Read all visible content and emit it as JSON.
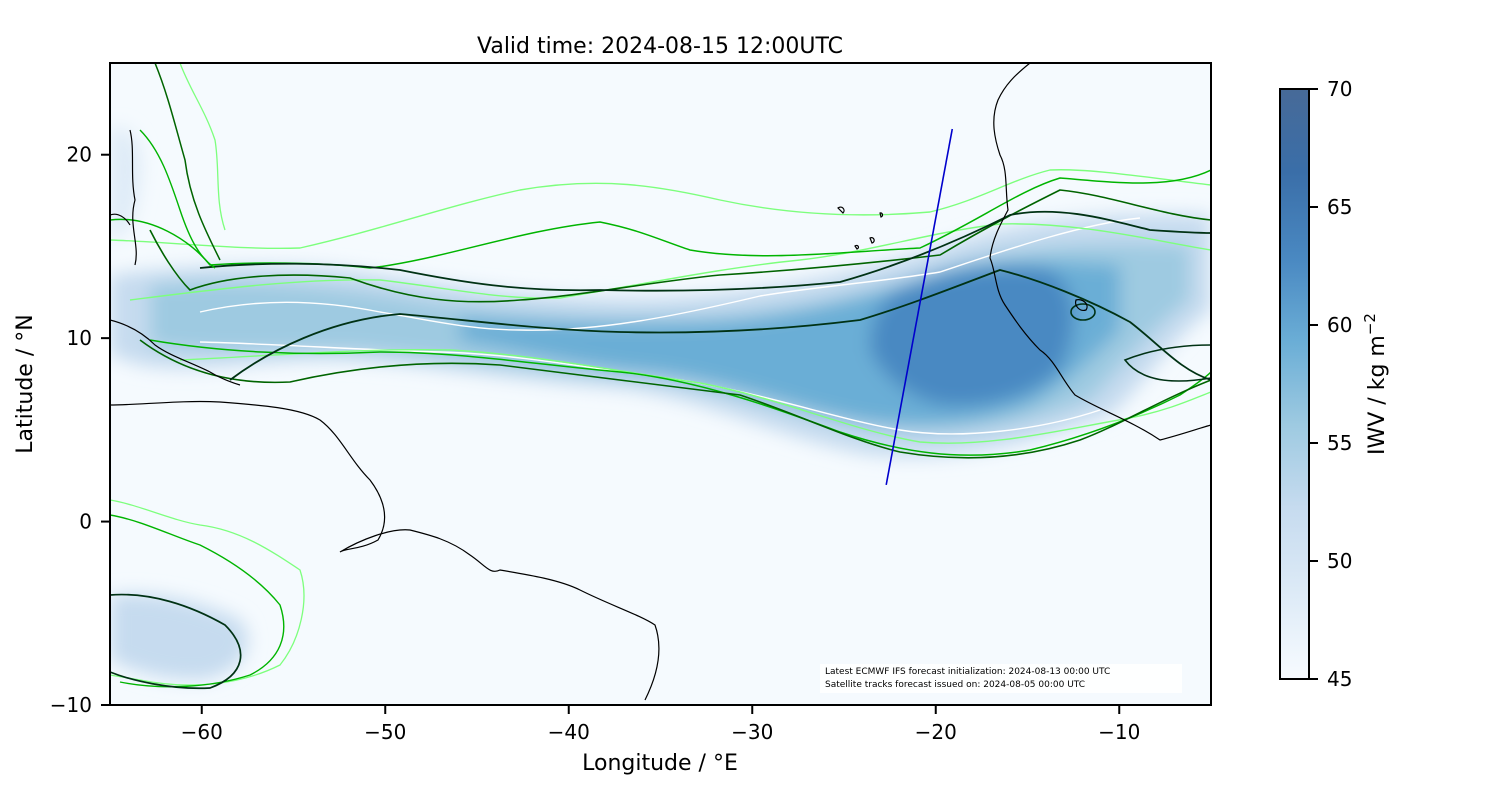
{
  "title": "Valid time: 2024-08-15 12:00UTC",
  "map": {
    "xlabel": "Longitude / °E",
    "ylabel": "Latitude / °N",
    "xlim": [
      -65,
      -5
    ],
    "ylim": [
      -10,
      25
    ],
    "xticks": [
      {
        "value": -60,
        "label": "−60"
      },
      {
        "value": -50,
        "label": "−50"
      },
      {
        "value": -40,
        "label": "−40"
      },
      {
        "value": -30,
        "label": "−30"
      },
      {
        "value": -20,
        "label": "−20"
      },
      {
        "value": -10,
        "label": "−10"
      }
    ],
    "yticks": [
      {
        "value": 20,
        "label": "20"
      },
      {
        "value": 10,
        "label": "10"
      },
      {
        "value": 0,
        "label": "0"
      },
      {
        "value": -10,
        "label": "−10"
      }
    ],
    "background_color": "#f5fafe",
    "coastline_color": "#000000",
    "contour_colors": [
      "#ffffff",
      "#7dff7d",
      "#00b400",
      "#006400",
      "#003214"
    ],
    "satellite_track": {
      "color": "#0000cc",
      "from": {
        "lon": -22.7,
        "lat": 2.0
      },
      "to": {
        "lon": -19.1,
        "lat": 21.4
      }
    },
    "annotation": {
      "line1": "Latest ECMWF IFS forecast initialization: 2024-08-13 00:00 UTC",
      "line2": "Satellite tracks forecast issued on: 2024-08-05 00:00 UTC"
    }
  },
  "colorbar": {
    "label": "IWV / kg m",
    "label_superscript": "−2",
    "min": 45,
    "max": 70,
    "ticks": [
      {
        "value": 45,
        "label": "45"
      },
      {
        "value": 50,
        "label": "50"
      },
      {
        "value": 55,
        "label": "55"
      },
      {
        "value": 60,
        "label": "60"
      },
      {
        "value": 65,
        "label": "65"
      },
      {
        "value": 70,
        "label": "70"
      }
    ],
    "colormap": [
      "#f7fbff",
      "#deebf7",
      "#c6dbef",
      "#9ecae1",
      "#6baed6",
      "#4a89c2",
      "#3a6ea8",
      "#476a98"
    ]
  }
}
